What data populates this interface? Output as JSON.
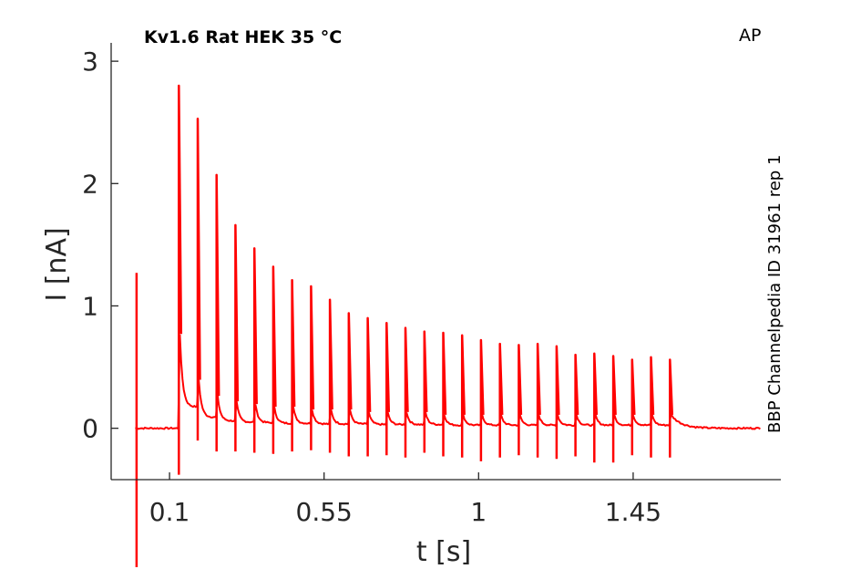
{
  "chart_data": {
    "type": "line",
    "title": "Kv1.6  Rat  HEK  35 °C",
    "corner_label": "AP",
    "side_label": "BBP Channelpedia ID 31961 rep 1",
    "xlabel": "t [s]",
    "ylabel": "I [nA]",
    "xlim": [
      -0.07,
      1.88
    ],
    "ylim": [
      -0.42,
      3.15
    ],
    "x_ticks": [
      0.1,
      0.55,
      1,
      1.45
    ],
    "x_tick_labels": [
      "0.1",
      "0.55",
      "1",
      "1.45"
    ],
    "y_ticks": [
      0,
      1,
      2,
      3
    ],
    "y_tick_labels": [
      "0",
      "1",
      "2",
      "3"
    ],
    "grid": false,
    "series_color": "#ff0000",
    "baseline": 0.0,
    "trace_start": 0.0,
    "trace_end": 1.82,
    "initial_artifact": {
      "t": 0.004,
      "top": 1.27,
      "bottom": -1.15
    },
    "spikes": [
      {
        "t": 0.127,
        "peak": 2.8,
        "min": -0.38,
        "plateau": 0.35
      },
      {
        "t": 0.182,
        "peak": 2.53,
        "min": -0.1,
        "plateau": 0.18
      },
      {
        "t": 0.237,
        "peak": 2.07,
        "min": -0.19,
        "plateau": 0.12
      },
      {
        "t": 0.292,
        "peak": 1.66,
        "min": -0.19,
        "plateau": 0.1
      },
      {
        "t": 0.347,
        "peak": 1.47,
        "min": -0.2,
        "plateau": 0.09
      },
      {
        "t": 0.402,
        "peak": 1.32,
        "min": -0.21,
        "plateau": 0.08
      },
      {
        "t": 0.457,
        "peak": 1.21,
        "min": -0.19,
        "plateau": 0.08
      },
      {
        "t": 0.512,
        "peak": 1.16,
        "min": -0.18,
        "plateau": 0.07
      },
      {
        "t": 0.567,
        "peak": 1.05,
        "min": -0.2,
        "plateau": 0.07
      },
      {
        "t": 0.622,
        "peak": 0.94,
        "min": -0.23,
        "plateau": 0.07
      },
      {
        "t": 0.677,
        "peak": 0.9,
        "min": -0.23,
        "plateau": 0.06
      },
      {
        "t": 0.732,
        "peak": 0.86,
        "min": -0.22,
        "plateau": 0.06
      },
      {
        "t": 0.787,
        "peak": 0.82,
        "min": -0.24,
        "plateau": 0.06
      },
      {
        "t": 0.842,
        "peak": 0.79,
        "min": -0.2,
        "plateau": 0.06
      },
      {
        "t": 0.897,
        "peak": 0.78,
        "min": -0.23,
        "plateau": 0.05
      },
      {
        "t": 0.952,
        "peak": 0.76,
        "min": -0.24,
        "plateau": 0.05
      },
      {
        "t": 1.007,
        "peak": 0.72,
        "min": -0.27,
        "plateau": 0.05
      },
      {
        "t": 1.062,
        "peak": 0.69,
        "min": -0.24,
        "plateau": 0.05
      },
      {
        "t": 1.117,
        "peak": 0.68,
        "min": -0.22,
        "plateau": 0.05
      },
      {
        "t": 1.172,
        "peak": 0.69,
        "min": -0.24,
        "plateau": 0.05
      },
      {
        "t": 1.227,
        "peak": 0.67,
        "min": -0.25,
        "plateau": 0.05
      },
      {
        "t": 1.282,
        "peak": 0.6,
        "min": -0.23,
        "plateau": 0.05
      },
      {
        "t": 1.337,
        "peak": 0.61,
        "min": -0.28,
        "plateau": 0.05
      },
      {
        "t": 1.392,
        "peak": 0.59,
        "min": -0.28,
        "plateau": 0.05
      },
      {
        "t": 1.447,
        "peak": 0.56,
        "min": -0.22,
        "plateau": 0.05
      },
      {
        "t": 1.502,
        "peak": 0.58,
        "min": -0.24,
        "plateau": 0.05
      },
      {
        "t": 1.557,
        "peak": 0.56,
        "min": -0.24,
        "plateau": 0.05
      }
    ]
  }
}
